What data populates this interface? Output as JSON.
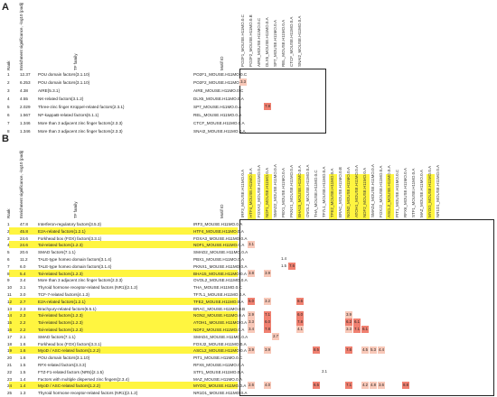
{
  "panelA": {
    "letter": "A",
    "headers": {
      "rank": "Rank",
      "enrichment": "Enrichment significance, -log10 (padj)",
      "tf_family": "TF family",
      "motif_id": "Motif ID"
    },
    "rows": [
      {
        "rank": "1",
        "sig": "12.37",
        "family": "POU domain factors{3.1.10}",
        "motif": "PO2F1_MOUSE.H11MO.0.C"
      },
      {
        "rank": "2",
        "sig": "6.253",
        "family": "POU domain factors{3.1.10}",
        "motif": "PO2F2_MOUSE.H11MO.0.B"
      },
      {
        "rank": "3",
        "sig": "4.38",
        "family": "AIRE{5.3.1}",
        "motif": "AIRE_MOUSE.H11MO.0.C"
      },
      {
        "rank": "4",
        "sig": "4.55",
        "family": "NK-related factors{3.1.2}",
        "motif": "DLX5_MOUSE.H11MO.0.A"
      },
      {
        "rank": "5",
        "sig": "2.029",
        "family": "Three-zinc finger Krüppel-related factors{2.3.1}",
        "motif": "SP7_MOUSE.H11MO.0.A"
      },
      {
        "rank": "6",
        "sig": "1.567",
        "family": "NF-kappaB-related factors{6.1.1}",
        "motif": "REL_MOUSE.H11MO.0.A"
      },
      {
        "rank": "7",
        "sig": "1.346",
        "family": "More than 3 adjacent zinc finger factors{2.3.3}",
        "motif": "CTCF_MOUSE.H11MO.0.A"
      },
      {
        "rank": "8",
        "sig": "1.346",
        "family": "More than 3 adjacent zinc finger factors{2.3.3}",
        "motif": "SNAI2_MOUSE.H11MO.0.A"
      }
    ],
    "columns": [
      "PO2F1_MOUSE.H11MO.0.C",
      "PO2F2_MOUSE.H11MO.0.B",
      "AIRE_MOUSE.H11MO.0.C",
      "DLX5_MOUSE.H11MO.0.A",
      "SP7_MOUSE.H11MO.0.A",
      "REL_MOUSE.H11MO.0.A",
      "CTCF_MOUSE.H11MO.0.A",
      "SNAI2_MOUSE.H11MO.0.A"
    ],
    "cells": [
      {
        "r": 1,
        "c": 0,
        "v": "3.3",
        "level": "weak"
      },
      {
        "r": 4,
        "c": 3,
        "v": "7.8",
        "level": "strong"
      }
    ]
  },
  "panelB": {
    "letter": "B",
    "headers": {
      "rank": "Rank",
      "enrichment": "Enrichment significance, -log10 (padj)",
      "tf_family": "TF family",
      "motif_id": "Motif ID"
    },
    "rows": [
      {
        "rank": "1",
        "sig": "47.8",
        "family": "Interferon-regulatory factors{3.5.3}",
        "motif": "IRF3_MOUSE.H11MO.0.A",
        "hl": false
      },
      {
        "rank": "2",
        "sig": "45.8",
        "family": "E2A-related factors{1.2.1}",
        "motif": "HTF4_MOUSE.H11MO.0.A",
        "hl": true
      },
      {
        "rank": "3",
        "sig": "24.6",
        "family": "Forkhead box (FOX) factors{3.3.1}",
        "motif": "FOXA3_MOUSE.H11MO.0.A",
        "hl": false
      },
      {
        "rank": "4",
        "sig": "24.6",
        "family": "Tal-related factors{1.2.3}",
        "motif": "NDF1_MOUSE.H11MO.0.A",
        "hl": true
      },
      {
        "rank": "5",
        "sig": "20.6",
        "family": "SMAD factors{7.1.1}",
        "motif": "SMAD2_MOUSE.H11MO.0.A",
        "hl": false
      },
      {
        "rank": "6",
        "sig": "11.2",
        "family": "TALE-type homeo domain factors{3.1.4}",
        "motif": "PBX1_MOUSE.H11MO.0.A",
        "hl": false
      },
      {
        "rank": "7",
        "sig": "6.0",
        "family": "TALE-type homeo domain factors{3.1.4}",
        "motif": "PKNX1_MOUSE.H11MO.0.A",
        "hl": false
      },
      {
        "rank": "8",
        "sig": "5.4",
        "family": "Tal-related factors{1.2.3}",
        "motif": "BHA15_MOUSE.H11MO.0.A",
        "hl": true
      },
      {
        "rank": "9",
        "sig": "3.4",
        "family": "More than 3 adjacent zinc finger factors{2.3.3}",
        "motif": "OVOL2_MOUSE.H11MO.0.A",
        "hl": false
      },
      {
        "rank": "10",
        "sig": "3.1",
        "family": "Thyroid hormone receptor-related factors (NR1){2.1.2}",
        "motif": "THA_MOUSE.H11MO.0.C",
        "hl": false
      },
      {
        "rank": "11",
        "sig": "3.0",
        "family": "TCF-7-related factors{4.1.3}",
        "motif": "TF7L1_MOUSE.H11MO.0.A",
        "hl": false
      },
      {
        "rank": "12",
        "sig": "2.7",
        "family": "E2A-related factors{1.2.1}",
        "motif": "TFE2_MOUSE.H11MO.0.A",
        "hl": true
      },
      {
        "rank": "13",
        "sig": "2.3",
        "family": "Brachyury-related factors{6.5.1}",
        "motif": "BRAC_MOUSE.H11MO.0.B",
        "hl": false
      },
      {
        "rank": "14",
        "sig": "2.3",
        "family": "Tal-related factors{1.2.3}",
        "motif": "NGN2_MOUSE.H11MO.0.A",
        "hl": true
      },
      {
        "rank": "15",
        "sig": "2.2",
        "family": "Tal-related factors{1.2.3}",
        "motif": "ATOH1_MOUSE.H11MO.0.A",
        "hl": true
      },
      {
        "rank": "16",
        "sig": "2.2",
        "family": "Tal-related factors{1.2.3}",
        "motif": "NDF2_MOUSE.H11MO.0.A",
        "hl": true
      },
      {
        "rank": "17",
        "sig": "2.1",
        "family": "SMAD factors{7.1.1}",
        "motif": "SMAD4_MOUSE.H11MO.0.A",
        "hl": false
      },
      {
        "rank": "18",
        "sig": "1.6",
        "family": "Forkhead box (FOX) factors{3.3.1}",
        "motif": "FOXJ2_MOUSE.H11MO.0.A",
        "hl": false
      },
      {
        "rank": "19",
        "sig": "1.6",
        "family": "MyoD / ASC-related factors{1.2.2}",
        "motif": "ASCL2_MOUSE.H11MO.0.A",
        "hl": true
      },
      {
        "rank": "20",
        "sig": "1.6",
        "family": "POU domain factors{3.1.10}",
        "motif": "PIT1_MOUSE.H11MO.0.C",
        "hl": false
      },
      {
        "rank": "21",
        "sig": "1.5",
        "family": "RFX-related factors{3.3.3}",
        "motif": "RFX6_MOUSE.H11MO.0.A",
        "hl": false
      },
      {
        "rank": "22",
        "sig": "1.5",
        "family": "FTZ-F1-related factors (NR5){2.1.5}",
        "motif": "STF1_MOUSE.H11MO.0.A",
        "hl": false
      },
      {
        "rank": "23",
        "sig": "1.4",
        "family": "Factors with multiple dispersed zinc fingers{2.3.4}",
        "motif": "MAZ_MOUSE.H11MO.0.A",
        "hl": false
      },
      {
        "rank": "24",
        "sig": "1.4",
        "family": "MyoD / ASC-related factors{1.2.2}",
        "motif": "MYOG_MOUSE.H11MO.0.A",
        "hl": true
      },
      {
        "rank": "25",
        "sig": "1.3",
        "family": "Thyroid hormone receptor-related factors (NR1){2.1.2}",
        "motif": "NR1D1_MOUSE.H11MO.0.A",
        "hl": false
      }
    ],
    "columns": [
      "IRF3_MOUSE.H11MO.0.A",
      "HTF4_MOUSE.H11MO.0.A",
      "FOXA3_MOUSE.H11MO.0.A",
      "NDF1_MOUSE.H11MO.0.A",
      "SMAD2_MOUSE.H11MO.0.A",
      "PBX1_MOUSE.H11MO.0.A",
      "PKNX1_MOUSE.H11MO.0.A",
      "BHA15_MOUSE.H11MO.0.A",
      "OVOL2_MOUSE.H11MO.0.A",
      "THA_MOUSE.H11MO.0.C",
      "TF7L1_MOUSE.H11MO.0.A",
      "TFE2_MOUSE.H11MO.0.A",
      "BRAC_MOUSE.H11MO.0.B",
      "NGN2_MOUSE.H11MO.0.A",
      "ATOH1_MOUSE.H11MO.0.A",
      "NDF2_MOUSE.H11MO.0.A",
      "SMAD4_MOUSE.H11MO.0.A",
      "FOXJ2_MOUSE.H11MO.0.A",
      "ASCL2_MOUSE.H11MO.0.A",
      "PIT1_MOUSE.H11MO.0.C",
      "RFX6_MOUSE.H11MO.0.A",
      "STF1_MOUSE.H11MO.0.A",
      "MAZ_MOUSE.H11MO.0.A",
      "MYOG_MOUSE.H11MO.0.A",
      "NR1D1_MOUSE.H11MO.0.A"
    ],
    "cells": [
      {
        "r": 3,
        "c": 1,
        "v": "3.1",
        "level": "weak"
      },
      {
        "r": 5,
        "c": 5,
        "v": "1.4",
        "level": "none"
      },
      {
        "r": 6,
        "c": 5,
        "v": "1.5",
        "level": "none"
      },
      {
        "r": 6,
        "c": 6,
        "v": "7.6",
        "level": "strong"
      },
      {
        "r": 7,
        "c": 1,
        "v": "3.8",
        "level": "weak"
      },
      {
        "r": 7,
        "c": 3,
        "v": "3.9",
        "level": "weak"
      },
      {
        "r": 11,
        "c": 1,
        "v": "6.0",
        "level": "strong"
      },
      {
        "r": 11,
        "c": 3,
        "v": "3.2",
        "level": "weak"
      },
      {
        "r": 11,
        "c": 7,
        "v": "8.6",
        "level": "strong"
      },
      {
        "r": 13,
        "c": 1,
        "v": "2.9",
        "level": "weak"
      },
      {
        "r": 13,
        "c": 3,
        "v": "7.1",
        "level": "strong"
      },
      {
        "r": 13,
        "c": 7,
        "v": "6.0",
        "level": "strong"
      },
      {
        "r": 13,
        "c": 13,
        "v": "3.9",
        "level": "weak"
      },
      {
        "r": 14,
        "c": 1,
        "v": "3.3",
        "level": "weak"
      },
      {
        "r": 14,
        "c": 3,
        "v": "6.0",
        "level": "strong"
      },
      {
        "r": 14,
        "c": 7,
        "v": "7.8",
        "level": "strong"
      },
      {
        "r": 14,
        "c": 13,
        "v": "6.2",
        "level": "strong"
      },
      {
        "r": 14,
        "c": 14,
        "v": "6.1",
        "level": "strong"
      },
      {
        "r": 15,
        "c": 1,
        "v": "3.4",
        "level": "weak"
      },
      {
        "r": 15,
        "c": 3,
        "v": "7.8",
        "level": "strong"
      },
      {
        "r": 15,
        "c": 7,
        "v": "4.1",
        "level": "weak"
      },
      {
        "r": 15,
        "c": 13,
        "v": "3.3",
        "level": "weak"
      },
      {
        "r": 15,
        "c": 14,
        "v": "7.1",
        "level": "strong"
      },
      {
        "r": 15,
        "c": 15,
        "v": "6.1",
        "level": "strong"
      },
      {
        "r": 16,
        "c": 4,
        "v": "2.7",
        "level": "weak"
      },
      {
        "r": 18,
        "c": 1,
        "v": "3.9",
        "level": "weak"
      },
      {
        "r": 18,
        "c": 3,
        "v": "3.9",
        "level": "weak"
      },
      {
        "r": 18,
        "c": 9,
        "v": "8.5",
        "level": "strong"
      },
      {
        "r": 18,
        "c": 13,
        "v": "7.6",
        "level": "strong"
      },
      {
        "r": 18,
        "c": 15,
        "v": "4.5",
        "level": "weak"
      },
      {
        "r": 18,
        "c": 16,
        "v": "5.3",
        "level": "weak"
      },
      {
        "r": 18,
        "c": 17,
        "v": "4.4",
        "level": "weak"
      },
      {
        "r": 21,
        "c": 10,
        "v": "2.1",
        "level": "none"
      },
      {
        "r": 23,
        "c": 1,
        "v": "2.6",
        "level": "weak"
      },
      {
        "r": 23,
        "c": 3,
        "v": "4.0",
        "level": "weak"
      },
      {
        "r": 23,
        "c": 9,
        "v": "6.5",
        "level": "strong"
      },
      {
        "r": 23,
        "c": 13,
        "v": "7.1",
        "level": "strong"
      },
      {
        "r": 23,
        "c": 15,
        "v": "4.2",
        "level": "weak"
      },
      {
        "r": 23,
        "c": 16,
        "v": "4.8",
        "level": "weak"
      },
      {
        "r": 23,
        "c": 17,
        "v": "3.6",
        "level": "weak"
      },
      {
        "r": 23,
        "c": 20,
        "v": "8.8",
        "level": "strong"
      }
    ]
  },
  "colors": {
    "highlight": "#fff200",
    "strong": "#f08070",
    "weak": "#f8c8b8"
  }
}
